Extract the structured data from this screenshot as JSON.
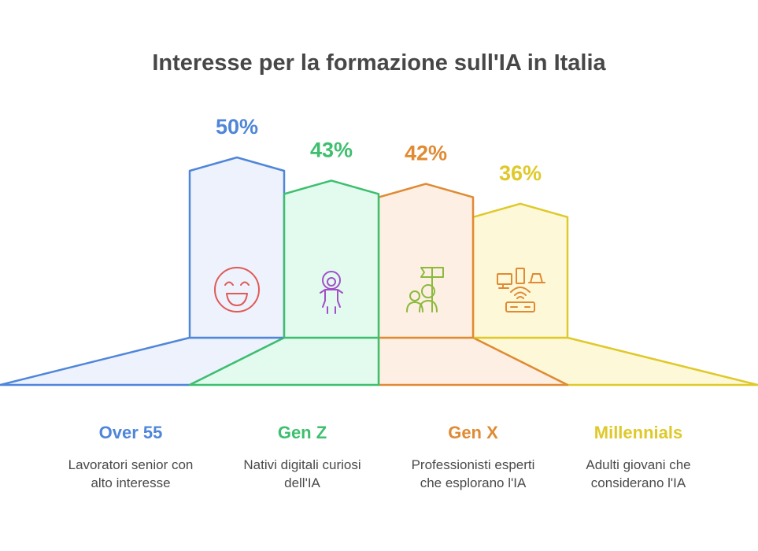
{
  "chart_data": {
    "type": "bar",
    "title": "Interesse per la formazione sull'IA in Italia",
    "unit": "%",
    "categories": [
      "Over 55",
      "Gen Z",
      "Gen X",
      "Millennials"
    ],
    "values": [
      50,
      43,
      42,
      36
    ],
    "value_labels": [
      "50%",
      "43%",
      "42%",
      "36%"
    ],
    "descriptions": [
      [
        "Lavoratori senior con",
        "alto interesse"
      ],
      [
        "Nativi digitali curiosi",
        "dell'IA"
      ],
      [
        "Professionisti esperti",
        "che esplorano l'IA"
      ],
      [
        "Adulti giovani che",
        "considerano l'IA"
      ]
    ],
    "icons": [
      "smiley-face-icon",
      "child-icon",
      "team-with-flag-icon",
      "devices-and-router-icon"
    ],
    "colors": {
      "stroke": [
        "#4f86d9",
        "#3dbf6e",
        "#e08a33",
        "#dfc92a"
      ],
      "fill": [
        "#edf2fc",
        "#e2fbee",
        "#fdefe3",
        "#fdf8d8"
      ],
      "label": [
        "#4f86d9",
        "#3dbf6e",
        "#e08a33",
        "#dfc92a"
      ],
      "icon": [
        "#e05a57",
        "#a24fc9",
        "#8cba3c",
        "#e08a33"
      ]
    }
  }
}
